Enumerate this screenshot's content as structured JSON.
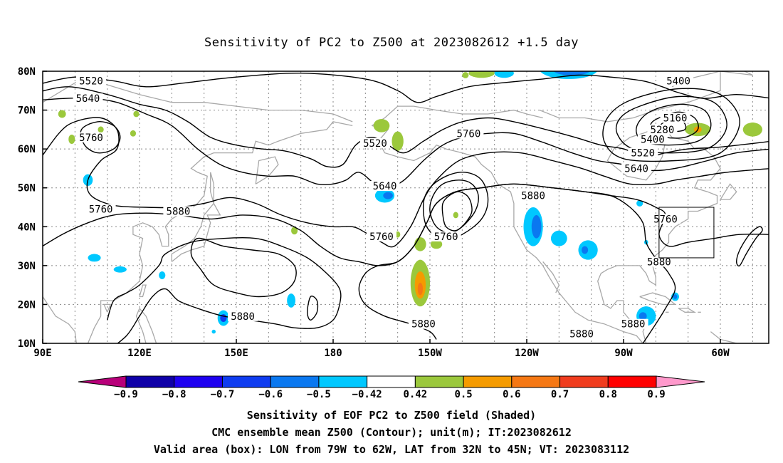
{
  "title": "Sensitivity of PC2 to Z500 at 2023082612 +1.5 day",
  "lat_labels": [
    "80N",
    "70N",
    "60N",
    "50N",
    "40N",
    "30N",
    "20N",
    "10N"
  ],
  "lon_labels": [
    "90E",
    "120E",
    "150E",
    "180",
    "150W",
    "120W",
    "90W",
    "60W"
  ],
  "contour_labels": [
    {
      "text": "5520",
      "lon": 105,
      "lat": 77.5
    },
    {
      "text": "5640",
      "lon": 104,
      "lat": 73.0
    },
    {
      "text": "5760",
      "lon": 105,
      "lat": 63.0
    },
    {
      "text": "5760",
      "lon": 108,
      "lat": 44.5
    },
    {
      "text": "5880",
      "lon": 132,
      "lat": 44.0
    },
    {
      "text": "5520",
      "lon": 193,
      "lat": 61.5
    },
    {
      "text": "5640",
      "lon": 196,
      "lat": 50.5
    },
    {
      "text": "5760",
      "lon": 195,
      "lat": 37.5
    },
    {
      "text": "5760",
      "lon": 215,
      "lat": 37.5
    },
    {
      "text": "5760",
      "lon": 222,
      "lat": 64.0
    },
    {
      "text": "5880",
      "lon": 152,
      "lat": 17.0
    },
    {
      "text": "5880",
      "lon": 208,
      "lat": 15.0
    },
    {
      "text": "5880",
      "lon": 242,
      "lat": 48.0
    },
    {
      "text": "5880",
      "lon": 257,
      "lat": 12.5
    },
    {
      "text": "5880",
      "lon": 273,
      "lat": 15.0
    },
    {
      "text": "5880",
      "lon": 281,
      "lat": 31.0
    },
    {
      "text": "5760",
      "lon": 283,
      "lat": 42.0
    },
    {
      "text": "5400",
      "lon": 287,
      "lat": 77.5
    },
    {
      "text": "5160",
      "lon": 286,
      "lat": 68.0
    },
    {
      "text": "5280",
      "lon": 282,
      "lat": 65.0
    },
    {
      "text": "5400",
      "lon": 279,
      "lat": 62.5
    },
    {
      "text": "5520",
      "lon": 276,
      "lat": 59.0
    },
    {
      "text": "5640",
      "lon": 274,
      "lat": 55.0
    }
  ],
  "valid_box": {
    "lon_min": 281,
    "lon_max": 298,
    "lat_min": 32,
    "lat_max": 45
  },
  "colorbar": {
    "labels": [
      "−0.9",
      "−0.8",
      "−0.7",
      "−0.6",
      "−0.5",
      "−0.42",
      "0.42",
      "0.5",
      "0.6",
      "0.7",
      "0.8",
      "0.9"
    ],
    "colors": [
      "#b8007a",
      "#0f00a8",
      "#1e00f0",
      "#0f3cf0",
      "#0a78f0",
      "#00c8ff",
      "#ffffff",
      "#9bc83c",
      "#f59b00",
      "#f57814",
      "#f03c1e",
      "#ff0000",
      "#ff99cc"
    ]
  },
  "captions": [
    "Sensitivity of EOF PC2 to Z500 field (Shaded)",
    "CMC ensemble mean Z500 (Contour); unit(m); IT:2023082612",
    "Valid area (box): LON from 79W to 62W, LAT from 32N to 45N; VT: 2023083112"
  ]
}
